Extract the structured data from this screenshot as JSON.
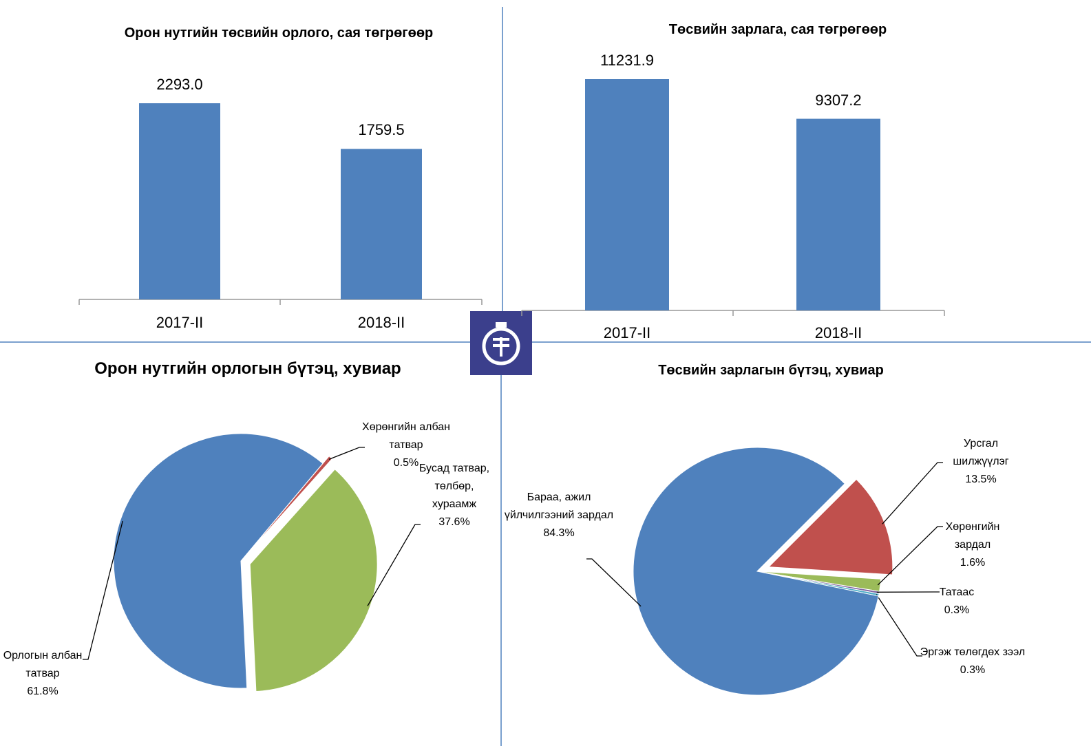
{
  "chart_data": [
    {
      "type": "bar",
      "title": "Орон нутгийн төсвийн орлого, сая төгрөгөөр",
      "categories": [
        "2017-II",
        "2018-II"
      ],
      "values": [
        2293.0,
        1759.5
      ],
      "value_labels": [
        "2293.0",
        "1759.5"
      ],
      "color": "#4f81bd"
    },
    {
      "type": "bar",
      "title": "Төсвийн зарлага, сая төгрөгөөр",
      "categories": [
        "2017-II",
        "2018-II"
      ],
      "values": [
        11231.9,
        9307.2
      ],
      "value_labels": [
        "11231.9",
        "9307.2"
      ],
      "color": "#4f81bd"
    },
    {
      "type": "pie",
      "title": "Орон нутгийн орлогын бүтэц, хувиар",
      "categories": [
        "Хөрөнгийн албан татвар",
        "Бусад татвар, төлбөр, хураамж",
        "Орлогын албан татвар"
      ],
      "values": [
        0.5,
        37.6,
        61.8
      ],
      "value_labels": [
        "0.5%",
        "37.6%",
        "61.8%"
      ],
      "colors": [
        "#c0504d",
        "#9bbb59",
        "#4f81bd"
      ]
    },
    {
      "type": "pie",
      "title": "Төсвийн зарлагын бүтэц, хувиар",
      "categories": [
        "Урсгал шилжүүлэг",
        "Хөрөнгийн зардал",
        "Татаас",
        "Эргэж төлөгдөх зээл",
        "Бараа, ажил үйлчилгээний зардал"
      ],
      "values": [
        13.5,
        1.6,
        0.3,
        0.3,
        84.3
      ],
      "value_labels": [
        "13.5%",
        "1.6%",
        "0.3%",
        "0.3%",
        "84.3%"
      ],
      "colors": [
        "#c0504d",
        "#9bbb59",
        "#8064a2",
        "#4bacc6",
        "#4f81bd"
      ]
    }
  ]
}
